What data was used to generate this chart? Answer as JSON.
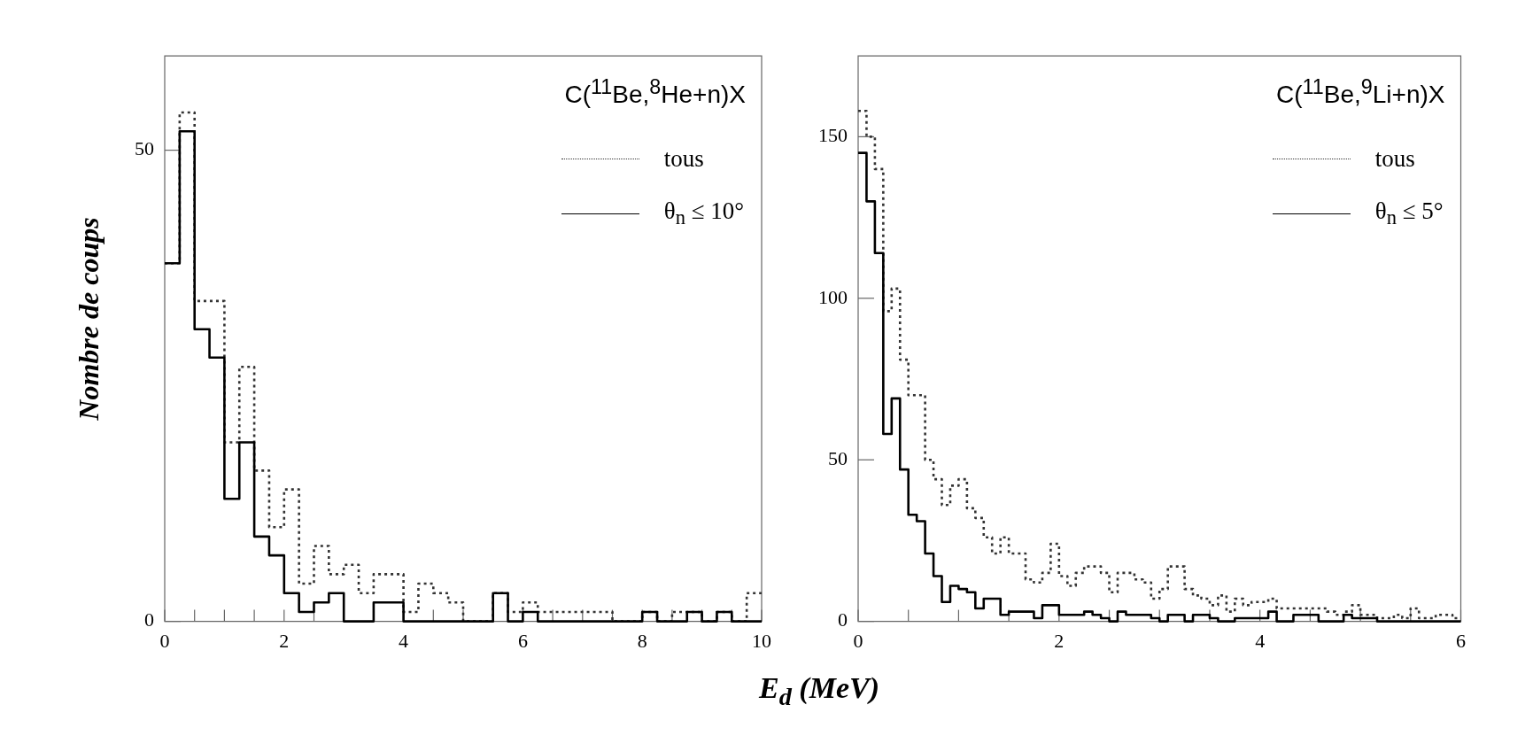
{
  "chart_data": [
    {
      "type": "histogram",
      "title": "C($^{11}$Be,$^{8}$He+n)X",
      "ylabel": "Nombre de coups",
      "xlabel": "E$_{d}$ (MeV)",
      "legend": "top right",
      "bins": [
        0,
        0.25,
        0.5,
        0.75,
        1,
        1.25,
        1.5,
        1.75,
        2,
        2.25,
        2.5,
        2.75,
        3,
        3.25,
        3.5,
        3.75,
        4,
        4.25,
        4.5,
        4.75,
        5,
        5.25,
        5.5,
        5.75,
        6,
        6.25,
        6.5,
        6.75,
        7,
        7.25,
        7.5,
        7.75,
        8,
        8.25,
        8.5,
        8.75,
        9,
        9.25,
        9.5,
        9.75,
        10
      ],
      "series": [
        {
          "name": "tous",
          "color": "#333333",
          "line_style": "dotted",
          "values": [
            38,
            54,
            34,
            34,
            19,
            27,
            16,
            10,
            14,
            4,
            8,
            5,
            6,
            3,
            5,
            5,
            1,
            4,
            3,
            2,
            0,
            0,
            3,
            1,
            2,
            1,
            1,
            1,
            1,
            1,
            0,
            0,
            1,
            0,
            1,
            1,
            0,
            1,
            0,
            3
          ]
        },
        {
          "name": "θ$_{n}$ ≤ 10°",
          "color": "#000000",
          "line_style": "solid",
          "values": [
            38,
            52,
            31,
            28,
            13,
            19,
            9,
            7,
            3,
            1,
            2,
            3,
            0,
            0,
            2,
            2,
            0,
            0,
            0,
            0,
            0,
            0,
            3,
            0,
            1,
            0,
            0,
            0,
            0,
            0,
            0,
            0,
            1,
            0,
            0,
            1,
            0,
            1,
            0,
            0
          ]
        }
      ],
      "xlim": [
        0,
        10
      ],
      "ylim": [
        0,
        60
      ],
      "xticks": [
        0,
        {
          "value": 0.5,
          "label": null
        },
        {
          "value": 1,
          "label": null
        },
        {
          "value": 1.5,
          "label": null
        },
        2,
        {
          "value": 2.5,
          "label": null
        },
        {
          "value": 3,
          "label": null
        },
        {
          "value": 3.5,
          "label": null
        },
        4,
        {
          "value": 4.5,
          "label": null
        },
        {
          "value": 5,
          "label": null
        },
        {
          "value": 5.5,
          "label": null
        },
        6,
        {
          "value": 6.5,
          "label": null
        },
        {
          "value": 7,
          "label": null
        },
        {
          "value": 7.5,
          "label": null
        },
        8,
        {
          "value": 8.5,
          "label": null
        },
        {
          "value": 9,
          "label": null
        },
        {
          "value": 9.5,
          "label": null
        },
        10
      ],
      "yticks": [
        0,
        50
      ]
    },
    {
      "type": "histogram",
      "title": "C($^{11}$Be,$^{9}$Li+n)X",
      "legend": "top right",
      "bins": [
        0,
        0.0833,
        0.1667,
        0.25,
        0.3333,
        0.4167,
        0.5,
        0.5833,
        0.6667,
        0.75,
        0.8333,
        0.9167,
        1,
        1.0833,
        1.1667,
        1.25,
        1.3333,
        1.4167,
        1.5,
        1.5833,
        1.6667,
        1.75,
        1.8333,
        1.9167,
        2,
        2.0833,
        2.1667,
        2.25,
        2.3333,
        2.4167,
        2.5,
        2.5833,
        2.6667,
        2.75,
        2.8333,
        2.9167,
        3,
        3.0833,
        3.1667,
        3.25,
        3.3333,
        3.4167,
        3.5,
        3.5833,
        3.6667,
        3.75,
        3.8333,
        3.9167,
        4,
        4.0833,
        4.1667,
        4.25,
        4.3333,
        4.4167,
        4.5,
        4.5833,
        4.6667,
        4.75,
        4.8333,
        4.9167,
        5,
        5.0833,
        5.1667,
        5.25,
        5.3333,
        5.4167,
        5.5,
        5.5833,
        5.6667,
        5.75,
        5.8333,
        5.9167,
        6
      ],
      "series": [
        {
          "name": "tous",
          "color": "#333333",
          "line_style": "dotted",
          "values": [
            158,
            150,
            140,
            96,
            103,
            81,
            70,
            70,
            50,
            44,
            36,
            42,
            44,
            35,
            32,
            26,
            21,
            26,
            21,
            21,
            13,
            12,
            15,
            24,
            14,
            11,
            15,
            17,
            17,
            15,
            9,
            15,
            15,
            13,
            12,
            7,
            10,
            17,
            17,
            10,
            8,
            7,
            5,
            8,
            3,
            7,
            5,
            6,
            6,
            7,
            4,
            4,
            4,
            4,
            4,
            4,
            3,
            2,
            3,
            5,
            2,
            2,
            1,
            1,
            2,
            1,
            4,
            1,
            1,
            2,
            2,
            1
          ]
        },
        {
          "name": "θ$_{n}$ ≤ 5°",
          "color": "#000000",
          "line_style": "solid",
          "values": [
            145,
            130,
            114,
            58,
            69,
            47,
            33,
            31,
            21,
            14,
            6,
            11,
            10,
            9,
            4,
            7,
            7,
            2,
            3,
            3,
            3,
            1,
            5,
            5,
            2,
            2,
            2,
            3,
            2,
            1,
            0,
            3,
            2,
            2,
            2,
            1,
            0,
            2,
            2,
            0,
            2,
            2,
            1,
            0,
            0,
            1,
            1,
            1,
            1,
            3,
            0,
            0,
            2,
            2,
            2,
            0,
            0,
            0,
            2,
            1,
            1,
            1,
            0,
            0,
            0,
            0,
            0,
            0,
            0,
            0,
            0,
            0
          ]
        }
      ],
      "xlim": [
        0,
        6
      ],
      "ylim": [
        0,
        175
      ],
      "xticks": [
        0,
        {
          "value": 0.5,
          "label": null
        },
        {
          "value": 1,
          "label": null
        },
        {
          "value": 1.5,
          "label": null
        },
        2,
        {
          "value": 2.5,
          "label": null
        },
        {
          "value": 3,
          "label": null
        },
        {
          "value": 3.5,
          "label": null
        },
        4,
        {
          "value": 4.5,
          "label": null
        },
        {
          "value": 5,
          "label": null
        },
        {
          "value": 5.5,
          "label": null
        },
        6
      ],
      "yticks": [
        0,
        50,
        100,
        150
      ]
    }
  ]
}
